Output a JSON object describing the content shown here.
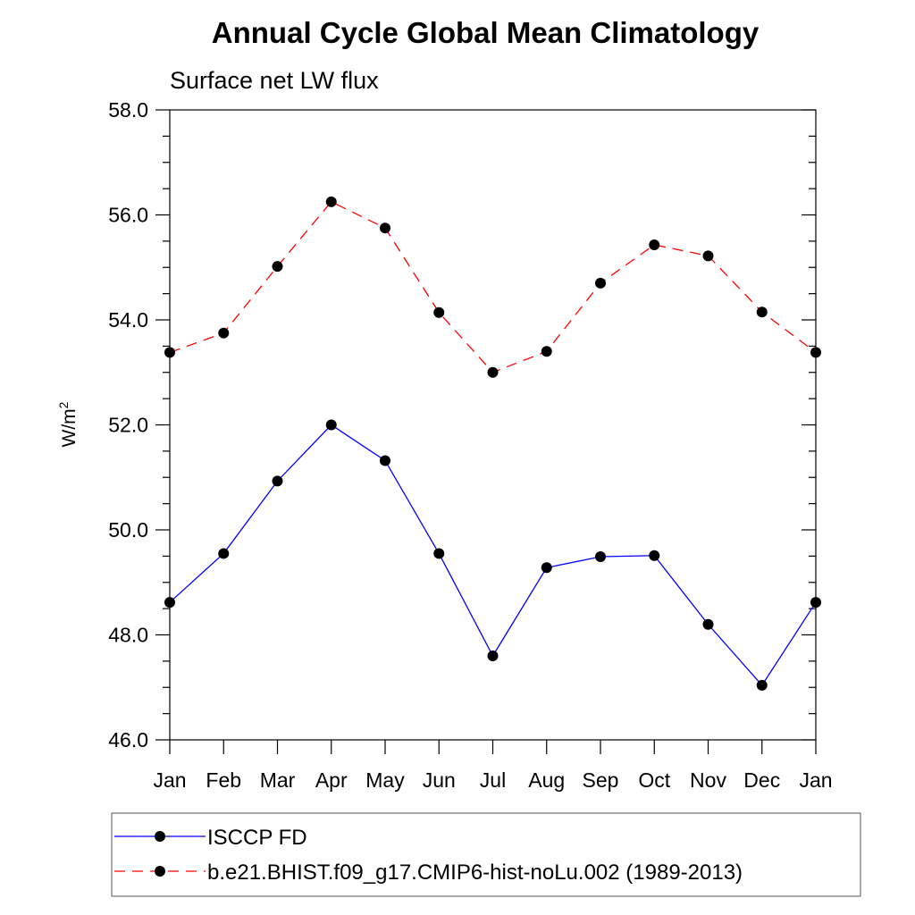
{
  "chart_data": {
    "type": "line",
    "title": "Annual Cycle Global Mean Climatology",
    "subtitle": "Surface net LW flux",
    "ylabel": "W/m",
    "ylabel_superscript": "2",
    "ylim": [
      46.0,
      58.0
    ],
    "yticks": [
      "46.0",
      "48.0",
      "50.0",
      "52.0",
      "54.0",
      "56.0",
      "58.0"
    ],
    "categories": [
      "Jan",
      "Feb",
      "Mar",
      "Apr",
      "May",
      "Jun",
      "Jul",
      "Aug",
      "Sep",
      "Oct",
      "Nov",
      "Dec",
      "Jan"
    ],
    "grid": false,
    "legend_position": "bottom",
    "series": [
      {
        "name": "ISCCP FD",
        "color": "#0000ff",
        "style": "solid",
        "values": [
          48.62,
          49.55,
          50.93,
          52.0,
          51.32,
          49.55,
          47.6,
          49.28,
          49.49,
          49.51,
          48.2,
          47.04,
          48.62
        ]
      },
      {
        "name": "b.e21.BHIST.f09_g17.CMIP6-hist-noLu.002 (1989-2013)",
        "color": "#ff0000",
        "style": "dashed",
        "values": [
          53.38,
          53.75,
          55.02,
          56.25,
          55.75,
          54.14,
          53.0,
          53.4,
          54.7,
          55.43,
          55.22,
          54.15,
          53.38
        ]
      }
    ]
  }
}
